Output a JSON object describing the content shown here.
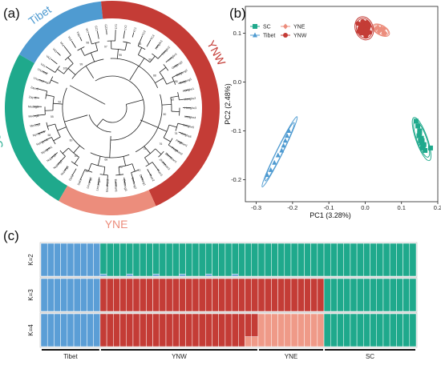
{
  "figure": {
    "panel_a": {
      "label": "(a)",
      "groups": [
        {
          "name": "Tibet",
          "color": "#4f9bd1"
        },
        {
          "name": "YNW",
          "color": "#c43c36"
        },
        {
          "name": "YNE",
          "color": "#ec8d7c"
        },
        {
          "name": "SC",
          "color": "#1fa98c"
        }
      ],
      "visible_tip_labels": [
        "YA1",
        "YA2",
        "YA3",
        "YA4",
        "YA5",
        "YA6",
        "YA7",
        "GZ1",
        "GZ2",
        "LY1",
        "LY2",
        "YC1",
        "YC2",
        "YC3",
        "Longlin1",
        "Longlin2",
        "Longlin3",
        "Guigang1",
        "Guigang2",
        "Guigang3",
        "Honghe1",
        "Honghe2",
        "Honghe3",
        "Honghe4",
        "Honghe5",
        "Honghe6",
        "Pingbian1",
        "Pingbian2",
        "Zhenyuan1",
        "Zhenyuan2",
        "Puer1",
        "Puer2",
        "Dehong1",
        "Dehong2",
        "Dehong3",
        "Baoshan1",
        "Baoshan2",
        "Lincang1",
        "Lincang2",
        "Dali1",
        "Dali2",
        "Nujiang1",
        "Nujiang2",
        "Nujiang3",
        "Nyingchi1",
        "Nyingchi2",
        "Nyingchi3",
        "Medog1",
        "Medog2",
        "Medog3",
        "Zayu1",
        "Zayu2",
        "Lhunze1",
        "Lhunze2"
      ],
      "bootstrap_values": [
        "100",
        "99",
        "98",
        "97",
        "95",
        "93",
        "90",
        "88",
        "85",
        "82",
        "80",
        "78",
        "76",
        "75",
        "72",
        "70",
        "68",
        "65",
        "63",
        "60",
        "58",
        "55",
        "52",
        "50"
      ]
    },
    "panel_b": {
      "label": "(b)",
      "legend": [
        {
          "name": "SC",
          "color": "#1fa98c",
          "marker": "square"
        },
        {
          "name": "YNE",
          "color": "#ec8d7c",
          "marker": "diamond"
        },
        {
          "name": "Tibet",
          "color": "#4f9bd1",
          "marker": "triangle"
        },
        {
          "name": "YNW",
          "color": "#c43c36",
          "marker": "circle"
        }
      ]
    },
    "panel_c": {
      "label": "(c)",
      "rows": [
        "K=2",
        "K=3",
        "K=4"
      ],
      "groups": [
        {
          "name": "Tibet",
          "count": 9
        },
        {
          "name": "YNW",
          "count": 24
        },
        {
          "name": "YNE",
          "count": 10
        },
        {
          "name": "SC",
          "count": 14
        }
      ],
      "colors": {
        "Tibet": "#5b9ed6",
        "YNW": "#c43c36",
        "YNE": "#ef9a88",
        "SC": "#1fa98c",
        "edge": "#ffffff"
      }
    }
  },
  "chart_data": {
    "type": "scatter",
    "title": "",
    "xlabel": "PC1 (3.28%)",
    "ylabel": "PC2 (2.48%)",
    "xlim": [
      -0.33,
      0.2
    ],
    "ylim": [
      -0.245,
      0.155
    ],
    "xticks": [
      -0.3,
      -0.2,
      -0.1,
      0.0,
      0.1,
      0.2
    ],
    "xtick_labels": [
      "-0.3",
      "-0.2",
      "-0.1",
      "0.0",
      "0.1",
      "0.2"
    ],
    "yticks": [
      0.1,
      0.0,
      -0.1,
      -0.2
    ],
    "ytick_labels": [
      "0.1",
      "0.0",
      "-0.1",
      "-0.2"
    ],
    "grid": true,
    "legend": "top-left",
    "series": [
      {
        "name": "SC",
        "marker": "square",
        "color": "#1fa98c",
        "points": [
          [
            0.14,
            -0.08
          ],
          [
            0.145,
            -0.09
          ],
          [
            0.15,
            -0.1
          ],
          [
            0.148,
            -0.11
          ],
          [
            0.152,
            -0.12
          ],
          [
            0.155,
            -0.125
          ],
          [
            0.16,
            -0.13
          ],
          [
            0.158,
            -0.135
          ],
          [
            0.15,
            -0.105
          ],
          [
            0.162,
            -0.128
          ],
          [
            0.155,
            -0.115
          ],
          [
            0.157,
            -0.12
          ],
          [
            0.18,
            -0.135
          ],
          [
            0.165,
            -0.14
          ]
        ]
      },
      {
        "name": "YNE",
        "marker": "diamond",
        "color": "#ec8d7c",
        "points": [
          [
            0.03,
            0.11
          ],
          [
            0.04,
            0.105
          ],
          [
            0.045,
            0.11
          ],
          [
            0.05,
            0.1
          ],
          [
            0.035,
            0.112
          ],
          [
            0.042,
            0.108
          ],
          [
            0.055,
            0.1
          ],
          [
            0.048,
            0.106
          ],
          [
            0.038,
            0.104
          ],
          [
            0.052,
            0.109
          ]
        ]
      },
      {
        "name": "Tibet",
        "marker": "triangle",
        "color": "#4f9bd1",
        "points": [
          [
            -0.21,
            -0.1
          ],
          [
            -0.215,
            -0.11
          ],
          [
            -0.22,
            -0.12
          ],
          [
            -0.225,
            -0.13
          ],
          [
            -0.23,
            -0.14
          ],
          [
            -0.24,
            -0.15
          ],
          [
            -0.25,
            -0.165
          ],
          [
            -0.26,
            -0.18
          ],
          [
            -0.27,
            -0.19
          ]
        ]
      },
      {
        "name": "YNW",
        "marker": "circle",
        "color": "#c43c36",
        "points": [
          [
            -0.02,
            0.12
          ],
          [
            -0.015,
            0.11
          ],
          [
            -0.01,
            0.115
          ],
          [
            -0.005,
            0.12
          ],
          [
            0.0,
            0.113
          ],
          [
            0.005,
            0.118
          ],
          [
            -0.01,
            0.1
          ],
          [
            0.0,
            0.098
          ],
          [
            0.005,
            0.105
          ],
          [
            -0.012,
            0.108
          ],
          [
            -0.003,
            0.102
          ],
          [
            0.004,
            0.122
          ],
          [
            0.008,
            0.11
          ],
          [
            -0.018,
            0.104
          ],
          [
            0.01,
            0.114
          ],
          [
            0.002,
            0.094
          ],
          [
            -0.007,
            0.124
          ],
          [
            0.012,
            0.102
          ],
          [
            -0.014,
            0.118
          ],
          [
            0.006,
            0.099
          ],
          [
            -0.004,
            0.109
          ],
          [
            0.009,
            0.119
          ],
          [
            -0.009,
            0.113
          ],
          [
            0.003,
            0.107
          ]
        ]
      }
    ]
  }
}
